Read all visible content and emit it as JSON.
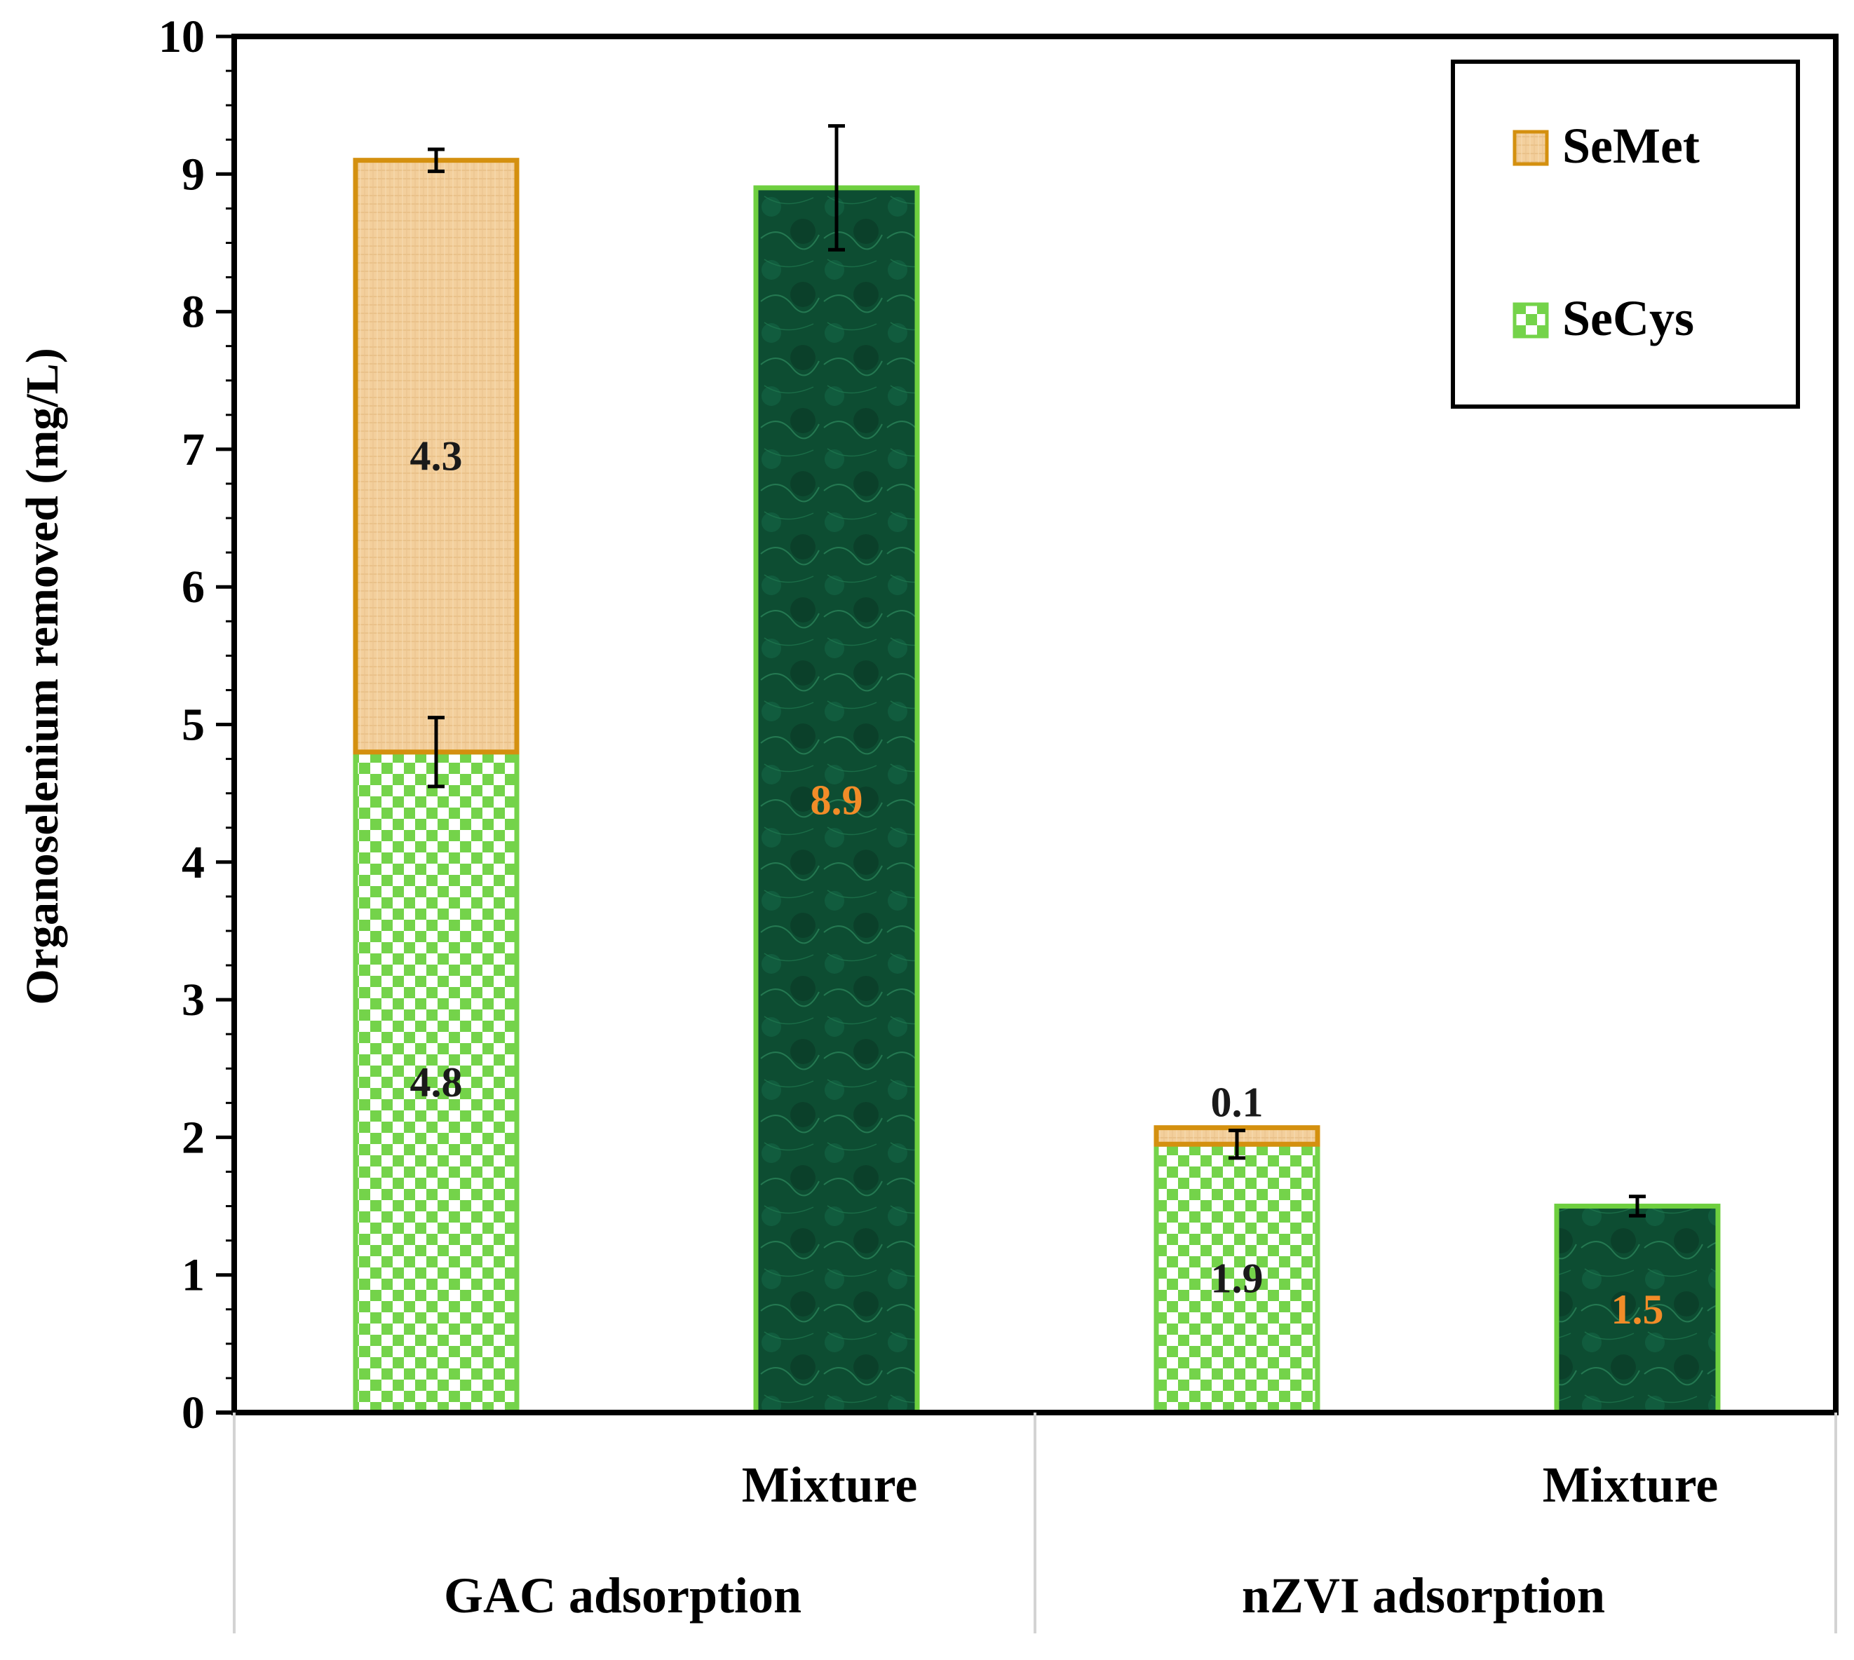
{
  "chart_data": {
    "type": "bar",
    "stacked": true,
    "title": "",
    "xlabel": "",
    "ylabel": "Organoselenium removed (mg/L)",
    "ylim": [
      0,
      10
    ],
    "yticks": [
      "0",
      "1",
      "2",
      "3",
      "4",
      "5",
      "6",
      "7",
      "8",
      "9",
      "10"
    ],
    "grid": false,
    "legend_position": "top-right",
    "groups": [
      {
        "label": "GAC adsorption",
        "bars": [
          0,
          1
        ]
      },
      {
        "label": "nZVI adsorption",
        "bars": [
          2,
          3
        ]
      }
    ],
    "bars": [
      {
        "category": "",
        "segments": [
          {
            "series": "SeCys",
            "value": 4.8,
            "label": "4.8",
            "error": 0.25
          },
          {
            "series": "SeMet",
            "value": 4.3,
            "label": "4.3",
            "error": 0.08
          }
        ]
      },
      {
        "category": "Mixture",
        "segments": [
          {
            "series": "Mixture",
            "value": 8.9,
            "label": "8.9",
            "error": 0.45
          }
        ]
      },
      {
        "category": "",
        "segments": [
          {
            "series": "SeCys",
            "value": 1.95,
            "label": "1.9",
            "error": 0.1
          },
          {
            "series": "SeMet",
            "value": 0.12,
            "label": "0.1",
            "error": null
          }
        ]
      },
      {
        "category": "Mixture",
        "segments": [
          {
            "series": "Mixture",
            "value": 1.5,
            "label": "1.5",
            "error": 0.07
          }
        ]
      }
    ],
    "legend": [
      {
        "series": "SeMet",
        "label": "SeMet"
      },
      {
        "series": "SeCys",
        "label": "SeCys"
      }
    ],
    "colors": {
      "SeMet_fill": "#f3cf9c",
      "SeMet_border": "#d4900f",
      "SeCys_checker": "#74d34a",
      "SeCys_border": "#74d34a",
      "Mixture_fill": "#0d4d32",
      "Mixture_border": "#6ecf3f",
      "label_dark": "#1a1a1a",
      "label_orange": "#f28c28"
    }
  }
}
